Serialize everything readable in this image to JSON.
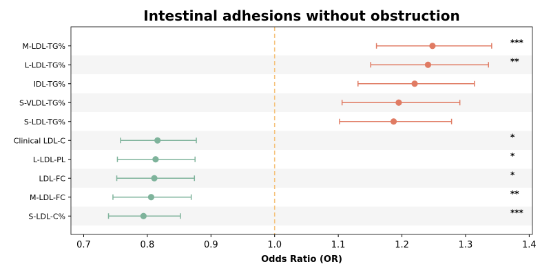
{
  "chart_data": {
    "type": "forest",
    "title": "Intestinal adhesions without obstruction",
    "xlabel": "Odds Ratio (OR)",
    "xlim": [
      0.68,
      1.405
    ],
    "x_ticks": [
      0.7,
      0.8,
      0.9,
      1.0,
      1.1,
      1.2,
      1.3,
      1.4
    ],
    "x_tick_labels": [
      "0.7",
      "0.8",
      "0.9",
      "1.0",
      "1.1",
      "1.2",
      "1.3",
      "1.4"
    ],
    "reference_line": 1.0,
    "colors": {
      "positive": "#E07B63",
      "negative": "#7EB39B",
      "reference": "#F5C27A",
      "stripe": "#F5F5F5"
    },
    "rows": [
      {
        "label": "M-LDL-TG%",
        "or": 1.248,
        "lo": 1.16,
        "hi": 1.341,
        "sig": "***",
        "direction": "positive"
      },
      {
        "label": "L-LDL-TG%",
        "or": 1.241,
        "lo": 1.151,
        "hi": 1.336,
        "sig": "**",
        "direction": "positive"
      },
      {
        "label": "IDL-TG%",
        "or": 1.22,
        "lo": 1.131,
        "hi": 1.314,
        "sig": "",
        "direction": "positive"
      },
      {
        "label": "S-VLDL-TG%",
        "or": 1.195,
        "lo": 1.106,
        "hi": 1.291,
        "sig": "",
        "direction": "positive"
      },
      {
        "label": "S-LDL-TG%",
        "or": 1.187,
        "lo": 1.102,
        "hi": 1.278,
        "sig": "",
        "direction": "positive"
      },
      {
        "label": "Clinical LDL-C",
        "or": 0.816,
        "lo": 0.758,
        "hi": 0.877,
        "sig": "*",
        "direction": "negative"
      },
      {
        "label": "L-LDL-PL",
        "or": 0.813,
        "lo": 0.753,
        "hi": 0.875,
        "sig": "*",
        "direction": "negative"
      },
      {
        "label": "LDL-FC",
        "or": 0.811,
        "lo": 0.752,
        "hi": 0.874,
        "sig": "*",
        "direction": "negative"
      },
      {
        "label": "M-LDL-FC",
        "or": 0.806,
        "lo": 0.746,
        "hi": 0.869,
        "sig": "**",
        "direction": "negative"
      },
      {
        "label": "S-LDL-C%",
        "or": 0.794,
        "lo": 0.739,
        "hi": 0.852,
        "sig": "***",
        "direction": "negative"
      }
    ]
  }
}
